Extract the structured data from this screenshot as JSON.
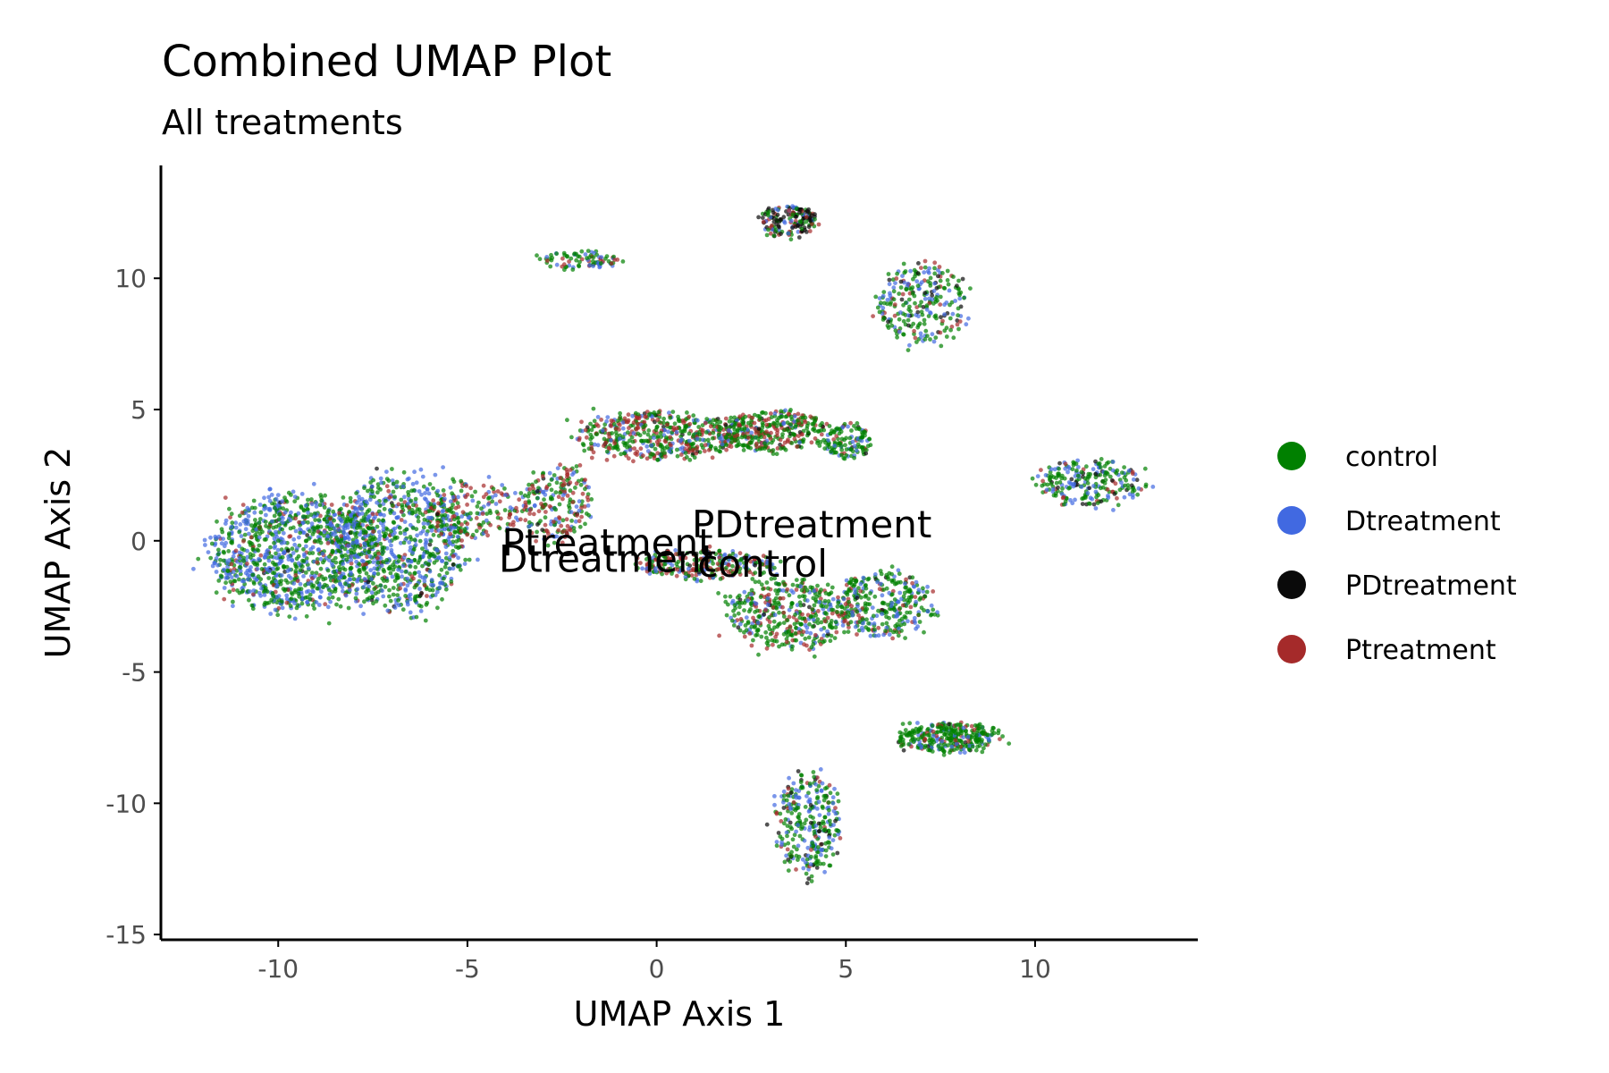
{
  "chart_data": {
    "type": "scatter",
    "title": "Combined UMAP Plot",
    "subtitle": "All treatments",
    "xlabel": "UMAP Axis 1",
    "ylabel": "UMAP Axis 2",
    "xlim": [
      -13.1,
      14.3
    ],
    "ylim": [
      -15.2,
      14.3
    ],
    "x_ticks": [
      -10,
      -5,
      0,
      5,
      10
    ],
    "x_tick_labels": [
      "-10",
      "-5",
      "0",
      "5",
      "10"
    ],
    "y_ticks": [
      -15,
      -10,
      -5,
      0,
      5,
      10
    ],
    "y_tick_labels": [
      "-15",
      "-10",
      "-5",
      "0",
      "5",
      "10"
    ],
    "grid": false,
    "legend_position": "right",
    "series": [
      {
        "name": "control",
        "color": "#008000"
      },
      {
        "name": "Dtreatment",
        "color": "#4169E1"
      },
      {
        "name": "PDtreatment",
        "color": "#0a0a0a"
      },
      {
        "name": "Ptreatment",
        "color": "#A52A2A"
      }
    ],
    "clusters": [
      {
        "cx": -9.5,
        "cy": -0.5,
        "rx": 2.4,
        "ry": 2.3,
        "n": 1100,
        "mix": [
          0.5,
          0.42,
          0.01,
          0.07
        ]
      },
      {
        "cx": -6.8,
        "cy": -0.1,
        "rx": 1.8,
        "ry": 2.7,
        "n": 800,
        "mix": [
          0.55,
          0.35,
          0.02,
          0.08
        ]
      },
      {
        "cx": -4.7,
        "cy": 1.2,
        "rx": 1.3,
        "ry": 1.2,
        "n": 160,
        "mix": [
          0.4,
          0.25,
          0.02,
          0.33
        ]
      },
      {
        "cx": -2.6,
        "cy": 1.4,
        "rx": 1.0,
        "ry": 1.6,
        "n": 220,
        "mix": [
          0.45,
          0.2,
          0.03,
          0.32
        ]
      },
      {
        "cx": 0.0,
        "cy": 4.0,
        "rx": 2.2,
        "ry": 0.9,
        "n": 500,
        "mix": [
          0.5,
          0.12,
          0.03,
          0.35
        ]
      },
      {
        "cx": 3.0,
        "cy": 4.2,
        "rx": 1.6,
        "ry": 0.8,
        "n": 350,
        "mix": [
          0.52,
          0.1,
          0.03,
          0.35
        ]
      },
      {
        "cx": 5.0,
        "cy": 3.8,
        "rx": 0.7,
        "ry": 0.7,
        "n": 120,
        "mix": [
          0.65,
          0.2,
          0.02,
          0.13
        ]
      },
      {
        "cx": 1.2,
        "cy": -0.9,
        "rx": 1.9,
        "ry": 0.6,
        "n": 260,
        "mix": [
          0.4,
          0.15,
          0.02,
          0.43
        ]
      },
      {
        "cx": 3.5,
        "cy": -2.8,
        "rx": 1.7,
        "ry": 1.4,
        "n": 420,
        "mix": [
          0.6,
          0.15,
          0.03,
          0.22
        ]
      },
      {
        "cx": 6.0,
        "cy": -2.4,
        "rx": 1.4,
        "ry": 1.3,
        "n": 320,
        "mix": [
          0.6,
          0.25,
          0.02,
          0.13
        ]
      },
      {
        "cx": -2.0,
        "cy": 10.7,
        "rx": 1.1,
        "ry": 0.35,
        "n": 90,
        "mix": [
          0.7,
          0.15,
          0.0,
          0.15
        ]
      },
      {
        "cx": 3.5,
        "cy": 12.2,
        "rx": 0.8,
        "ry": 0.6,
        "n": 170,
        "mix": [
          0.3,
          0.1,
          0.45,
          0.15
        ]
      },
      {
        "cx": 7.0,
        "cy": 9.0,
        "rx": 1.3,
        "ry": 1.6,
        "n": 260,
        "mix": [
          0.55,
          0.25,
          0.08,
          0.12
        ]
      },
      {
        "cx": 11.5,
        "cy": 2.2,
        "rx": 1.5,
        "ry": 0.9,
        "n": 240,
        "mix": [
          0.55,
          0.25,
          0.1,
          0.1
        ]
      },
      {
        "cx": 7.7,
        "cy": -7.5,
        "rx": 1.4,
        "ry": 0.6,
        "n": 320,
        "mix": [
          0.7,
          0.15,
          0.02,
          0.13
        ]
      },
      {
        "cx": 4.0,
        "cy": -10.8,
        "rx": 0.9,
        "ry": 2.0,
        "n": 300,
        "mix": [
          0.45,
          0.35,
          0.1,
          0.1
        ]
      }
    ],
    "annotations": [
      {
        "text": "PDtreatment",
        "x": 4.1,
        "y": 0.6
      },
      {
        "text": "Ptreatment",
        "x": -1.3,
        "y": -0.1
      },
      {
        "text": "Dtreatment",
        "x": -1.3,
        "y": -0.7
      },
      {
        "text": "control",
        "x": 2.8,
        "y": -0.9
      }
    ]
  }
}
